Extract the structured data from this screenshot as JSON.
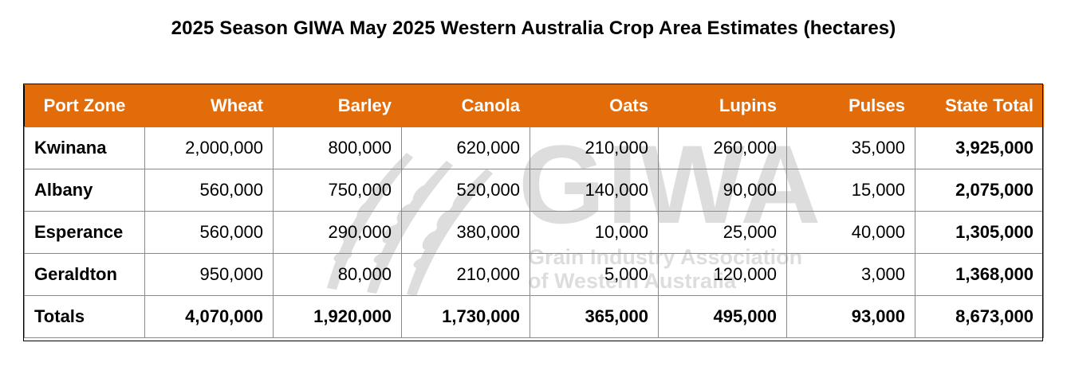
{
  "title": "2025 Season GIWA May 2025 Western Australia Crop Area Estimates (hectares)",
  "watermark": {
    "logo_text": "GIWA",
    "line1": "Grain Industry Association",
    "line2": "of Western Australia"
  },
  "table": {
    "headers": [
      "Port Zone",
      "Wheat",
      "Barley",
      "Canola",
      "Oats",
      "Lupins",
      "Pulses",
      "State Total"
    ],
    "rows": [
      [
        "Kwinana",
        "2,000,000",
        "800,000",
        "620,000",
        "210,000",
        "260,000",
        "35,000",
        "3,925,000"
      ],
      [
        "Albany",
        "560,000",
        "750,000",
        "520,000",
        "140,000",
        "90,000",
        "15,000",
        "2,075,000"
      ],
      [
        "Esperance",
        "560,000",
        "290,000",
        "380,000",
        "10,000",
        "25,000",
        "40,000",
        "1,305,000"
      ],
      [
        "Geraldton",
        "950,000",
        "80,000",
        "210,000",
        "5,000",
        "120,000",
        "3,000",
        "1,368,000"
      ]
    ],
    "totals": [
      "Totals",
      "4,070,000",
      "1,920,000",
      "1,730,000",
      "365,000",
      "495,000",
      "93,000",
      "8,673,000"
    ]
  },
  "colors": {
    "header_bg": "#e36c0a",
    "header_text": "#ffffff",
    "border": "#8a8a8a"
  }
}
